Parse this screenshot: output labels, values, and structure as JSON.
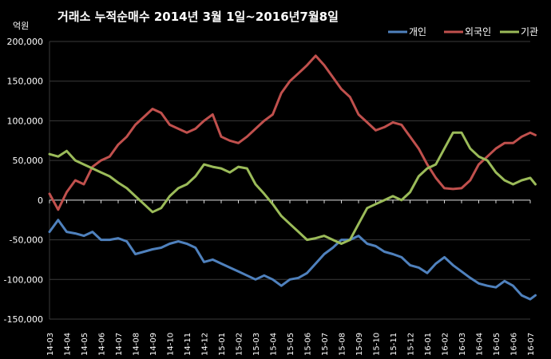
{
  "chart_data": {
    "type": "line",
    "title": "거래소  누적순매수 2014년 3월 1일~2016년7월8일",
    "unit_label": "억원",
    "ylim": [
      -150000,
      200000
    ],
    "yticks": [
      200000,
      150000,
      100000,
      50000,
      0,
      -50000,
      -100000,
      -150000
    ],
    "ytick_labels": [
      "200,000",
      "150,000",
      "100,000",
      "50,000",
      "0",
      "-50,000",
      "-100,000",
      "-150,000"
    ],
    "x": [
      "14-03",
      "14-04",
      "14-05",
      "14-06",
      "14-07",
      "14-08",
      "14-09",
      "14-10",
      "14-11",
      "14-12",
      "15-01",
      "15-02",
      "15-03",
      "15-04",
      "15-05",
      "15-06",
      "15-07",
      "15-08",
      "15-09",
      "15-10",
      "15-11",
      "15-12",
      "16-01",
      "16-02",
      "16-03",
      "16-04",
      "16-05",
      "16-06",
      "16-07"
    ],
    "grid": true,
    "legend_position": "top-right",
    "series": [
      {
        "name": "개인",
        "color": "#4f81bd",
        "points": [
          [
            "14-03",
            -40000
          ],
          [
            "14-03.5",
            -25000
          ],
          [
            "14-04",
            -40000
          ],
          [
            "14-04.5",
            -42000
          ],
          [
            "14-05",
            -45000
          ],
          [
            "14-05.5",
            -40000
          ],
          [
            "14-06",
            -50000
          ],
          [
            "14-06.5",
            -50000
          ],
          [
            "14-07",
            -48000
          ],
          [
            "14-07.5",
            -52000
          ],
          [
            "14-08",
            -68000
          ],
          [
            "14-08.5",
            -65000
          ],
          [
            "14-09",
            -62000
          ],
          [
            "14-09.5",
            -60000
          ],
          [
            "14-10",
            -55000
          ],
          [
            "14-10.5",
            -52000
          ],
          [
            "14-11",
            -55000
          ],
          [
            "14-11.5",
            -60000
          ],
          [
            "14-12",
            -78000
          ],
          [
            "14-12.5",
            -75000
          ],
          [
            "15-01",
            -80000
          ],
          [
            "15-01.5",
            -85000
          ],
          [
            "15-02",
            -90000
          ],
          [
            "15-02.5",
            -95000
          ],
          [
            "15-03",
            -100000
          ],
          [
            "15-03.5",
            -95000
          ],
          [
            "15-04",
            -100000
          ],
          [
            "15-04.5",
            -108000
          ],
          [
            "15-05",
            -100000
          ],
          [
            "15-05.5",
            -98000
          ],
          [
            "15-06",
            -92000
          ],
          [
            "15-06.5",
            -80000
          ],
          [
            "15-07",
            -68000
          ],
          [
            "15-07.5",
            -60000
          ],
          [
            "15-08",
            -50000
          ],
          [
            "15-08.5",
            -50000
          ],
          [
            "15-09",
            -45000
          ],
          [
            "15-09.5",
            -55000
          ],
          [
            "15-10",
            -58000
          ],
          [
            "15-10.5",
            -65000
          ],
          [
            "15-11",
            -68000
          ],
          [
            "15-11.5",
            -72000
          ],
          [
            "15-12",
            -82000
          ],
          [
            "15-12.5",
            -85000
          ],
          [
            "16-01",
            -92000
          ],
          [
            "16-01.5",
            -80000
          ],
          [
            "16-02",
            -72000
          ],
          [
            "16-02.5",
            -82000
          ],
          [
            "16-03",
            -90000
          ],
          [
            "16-03.5",
            -98000
          ],
          [
            "16-04",
            -105000
          ],
          [
            "16-04.5",
            -108000
          ],
          [
            "16-05",
            -110000
          ],
          [
            "16-05.5",
            -102000
          ],
          [
            "16-06",
            -108000
          ],
          [
            "16-06.5",
            -120000
          ],
          [
            "16-07",
            -125000
          ],
          [
            "16-07.3",
            -120000
          ]
        ]
      },
      {
        "name": "외국인",
        "color": "#c0504d",
        "points": [
          [
            "14-03",
            8000
          ],
          [
            "14-03.5",
            -12000
          ],
          [
            "14-04",
            10000
          ],
          [
            "14-04.5",
            25000
          ],
          [
            "14-05",
            20000
          ],
          [
            "14-05.5",
            42000
          ],
          [
            "14-06",
            50000
          ],
          [
            "14-06.5",
            55000
          ],
          [
            "14-07",
            70000
          ],
          [
            "14-07.5",
            80000
          ],
          [
            "14-08",
            95000
          ],
          [
            "14-08.5",
            105000
          ],
          [
            "14-09",
            115000
          ],
          [
            "14-09.5",
            110000
          ],
          [
            "14-10",
            95000
          ],
          [
            "14-10.5",
            90000
          ],
          [
            "14-11",
            85000
          ],
          [
            "14-11.5",
            90000
          ],
          [
            "14-12",
            100000
          ],
          [
            "14-12.5",
            108000
          ],
          [
            "15-01",
            80000
          ],
          [
            "15-01.5",
            75000
          ],
          [
            "15-02",
            72000
          ],
          [
            "15-02.5",
            80000
          ],
          [
            "15-03",
            90000
          ],
          [
            "15-03.5",
            100000
          ],
          [
            "15-04",
            108000
          ],
          [
            "15-04.5",
            135000
          ],
          [
            "15-05",
            150000
          ],
          [
            "15-05.5",
            160000
          ],
          [
            "15-06",
            170000
          ],
          [
            "15-06.5",
            182000
          ],
          [
            "15-07",
            170000
          ],
          [
            "15-07.5",
            155000
          ],
          [
            "15-08",
            140000
          ],
          [
            "15-08.5",
            130000
          ],
          [
            "15-09",
            108000
          ],
          [
            "15-09.5",
            98000
          ],
          [
            "15-10",
            88000
          ],
          [
            "15-10.5",
            92000
          ],
          [
            "15-11",
            98000
          ],
          [
            "15-11.5",
            95000
          ],
          [
            "15-12",
            80000
          ],
          [
            "15-12.5",
            65000
          ],
          [
            "16-01",
            45000
          ],
          [
            "16-01.5",
            28000
          ],
          [
            "16-02",
            15000
          ],
          [
            "16-02.5",
            14000
          ],
          [
            "16-03",
            15000
          ],
          [
            "16-03.5",
            25000
          ],
          [
            "16-04",
            45000
          ],
          [
            "16-04.5",
            55000
          ],
          [
            "16-05",
            65000
          ],
          [
            "16-05.5",
            72000
          ],
          [
            "16-06",
            72000
          ],
          [
            "16-06.5",
            80000
          ],
          [
            "16-07",
            85000
          ],
          [
            "16-07.3",
            82000
          ]
        ]
      },
      {
        "name": "기관",
        "color": "#9bbb59",
        "points": [
          [
            "14-03",
            58000
          ],
          [
            "14-03.5",
            55000
          ],
          [
            "14-04",
            62000
          ],
          [
            "14-04.5",
            50000
          ],
          [
            "14-05",
            45000
          ],
          [
            "14-05.5",
            40000
          ],
          [
            "14-06",
            35000
          ],
          [
            "14-06.5",
            30000
          ],
          [
            "14-07",
            22000
          ],
          [
            "14-07.5",
            15000
          ],
          [
            "14-08",
            5000
          ],
          [
            "14-08.5",
            -5000
          ],
          [
            "14-09",
            -15000
          ],
          [
            "14-09.5",
            -10000
          ],
          [
            "14-10",
            5000
          ],
          [
            "14-10.5",
            15000
          ],
          [
            "14-11",
            20000
          ],
          [
            "14-11.5",
            30000
          ],
          [
            "14-12",
            45000
          ],
          [
            "14-12.5",
            42000
          ],
          [
            "15-01",
            40000
          ],
          [
            "15-01.5",
            35000
          ],
          [
            "15-02",
            42000
          ],
          [
            "15-02.5",
            40000
          ],
          [
            "15-03",
            20000
          ],
          [
            "15-03.5",
            8000
          ],
          [
            "15-04",
            -5000
          ],
          [
            "15-04.5",
            -20000
          ],
          [
            "15-05",
            -30000
          ],
          [
            "15-05.5",
            -40000
          ],
          [
            "15-06",
            -50000
          ],
          [
            "15-06.5",
            -48000
          ],
          [
            "15-07",
            -45000
          ],
          [
            "15-07.5",
            -50000
          ],
          [
            "15-08",
            -55000
          ],
          [
            "15-08.5",
            -50000
          ],
          [
            "15-09",
            -30000
          ],
          [
            "15-09.5",
            -10000
          ],
          [
            "15-10",
            -5000
          ],
          [
            "15-10.5",
            0
          ],
          [
            "15-11",
            5000
          ],
          [
            "15-11.5",
            0
          ],
          [
            "15-12",
            10000
          ],
          [
            "15-12.5",
            30000
          ],
          [
            "16-01",
            40000
          ],
          [
            "16-01.5",
            45000
          ],
          [
            "16-02",
            65000
          ],
          [
            "16-02.5",
            85000
          ],
          [
            "16-03",
            85000
          ],
          [
            "16-03.5",
            65000
          ],
          [
            "16-04",
            55000
          ],
          [
            "16-04.5",
            50000
          ],
          [
            "16-05",
            35000
          ],
          [
            "16-05.5",
            25000
          ],
          [
            "16-06",
            20000
          ],
          [
            "16-06.5",
            25000
          ],
          [
            "16-07",
            28000
          ],
          [
            "16-07.3",
            20000
          ]
        ]
      }
    ]
  }
}
